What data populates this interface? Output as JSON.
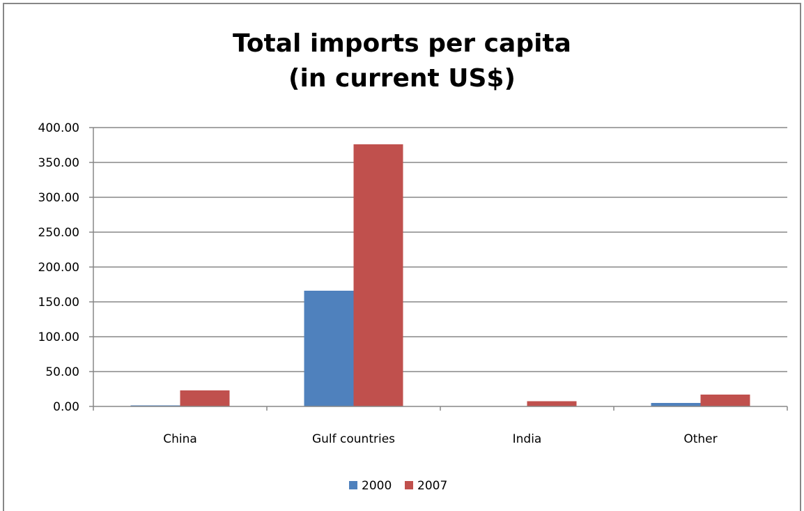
{
  "chart_data": {
    "type": "bar",
    "title_lines": [
      "Total imports per capita",
      "(in current US$)"
    ],
    "xlabel": "",
    "ylabel": "",
    "categories": [
      "China",
      "Gulf countries",
      "India",
      "Other"
    ],
    "series": [
      {
        "name": "2000",
        "color": "#4F81BD",
        "values": [
          1.5,
          166,
          0.3,
          5
        ]
      },
      {
        "name": "2007",
        "color": "#C0504D",
        "values": [
          23,
          376,
          7.5,
          17
        ]
      }
    ],
    "ylim": [
      0,
      400
    ],
    "y_tick_step": 50,
    "y_tick_labels": [
      "0.00",
      "50.00",
      "100.00",
      "150.00",
      "200.00",
      "250.00",
      "300.00",
      "350.00",
      "400.00"
    ],
    "grid": true,
    "legend_position": "bottom"
  }
}
